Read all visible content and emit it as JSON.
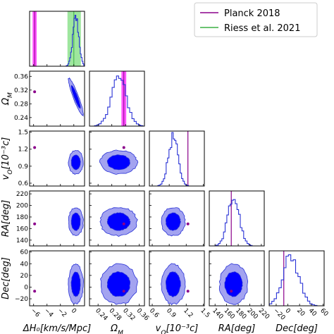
{
  "chart_data": {
    "type": "corner",
    "title": "",
    "parameters": [
      {
        "key": "dH0",
        "label": "ΔH₀[km/s/Mpc]",
        "range": [
          -6.6,
          1.6
        ],
        "ticks": [
          -6,
          -4,
          -2,
          0
        ],
        "tick_labels": [
          "−6",
          "−4",
          "−2",
          "0"
        ]
      },
      {
        "key": "OmegaM",
        "label": "Ω_M",
        "range": [
          0.215,
          0.375
        ],
        "ticks": [
          0.24,
          0.28,
          0.32,
          0.36
        ],
        "tick_labels": [
          "0.24",
          "0.28",
          "0.32",
          "0.36"
        ]
      },
      {
        "key": "vO",
        "label": "v_O[10⁻³c]",
        "range": [
          0.55,
          1.52
        ],
        "ticks": [
          0.6,
          0.9,
          1.2,
          1.5
        ],
        "tick_labels": [
          "0.6",
          "0.9",
          "1.2",
          "1.5"
        ]
      },
      {
        "key": "RA",
        "label": "RA[deg]",
        "range": [
          130,
          225
        ],
        "ticks": [
          140,
          160,
          180,
          200,
          220
        ],
        "tick_labels": [
          "140",
          "160",
          "180",
          "200",
          "220"
        ]
      },
      {
        "key": "Dec",
        "label": "Dec[deg]",
        "range": [
          -32,
          62
        ],
        "ticks": [
          -20,
          0,
          20,
          40,
          60
        ],
        "tick_labels": [
          "−20",
          "0",
          "20",
          "40",
          "60"
        ]
      }
    ],
    "y_tick_sets": {
      "OmegaM": {
        "ticks": [
          0.24,
          0.28,
          0.32,
          0.36
        ],
        "tick_labels": [
          "0.24",
          "0.28",
          "0.32",
          "0.36"
        ]
      },
      "vO": {
        "ticks": [
          0.6,
          0.9,
          1.2,
          1.5
        ],
        "tick_labels": [
          "0.6",
          "0.9",
          "1.2",
          "1.5"
        ]
      },
      "RA": {
        "ticks": [
          140,
          160,
          180,
          200,
          220
        ],
        "tick_labels": [
          "140",
          "160",
          "180",
          "200",
          "220"
        ]
      },
      "Dec": {
        "ticks": [
          -20,
          0,
          20,
          40,
          60
        ],
        "tick_labels": [
          "−20",
          "0",
          "20",
          "40",
          "60"
        ]
      }
    },
    "posterior": {
      "dH0": {
        "mean": 0.3,
        "sigma": 0.45
      },
      "OmegaM": {
        "mean": 0.3,
        "sigma": 0.022
      },
      "vO": {
        "mean": 0.97,
        "sigma": 0.085
      },
      "RA": {
        "mean": 172,
        "sigma": 10
      },
      "Dec": {
        "mean": 5,
        "sigma": 14
      }
    },
    "correlations": {
      "dH0|OmegaM": -0.92
    },
    "references": [
      {
        "name": "Planck 2018",
        "color": "#8b008b",
        "values": {
          "dH0": -5.85,
          "OmegaM": 0.315,
          "vO": 1.23,
          "RA": 168,
          "Dec": -7
        }
      },
      {
        "name": "Riess et al. 2021",
        "color": "#3cb043",
        "values": {
          "dH0": 0.0
        }
      }
    ],
    "bands": {
      "planck_dH0": [
        -6.15,
        -5.55
      ],
      "riess_dH0": [
        -0.95,
        1.05
      ],
      "planck_OmegaM": [
        0.308,
        0.322
      ]
    },
    "legend": {
      "position": "top-right",
      "entries": [
        "Planck 2018",
        "Riess et al. 2021"
      ]
    },
    "colors": {
      "hist": "#2a33d6",
      "contour_inner": "#0000ff",
      "contour_outer": "#a3a3f0",
      "contour_edge": "#2a33d6",
      "planck": "#8b008b",
      "planck_band": "#ff55ff",
      "riess": "#3cb043",
      "riess_band": "#9ee69e"
    }
  }
}
